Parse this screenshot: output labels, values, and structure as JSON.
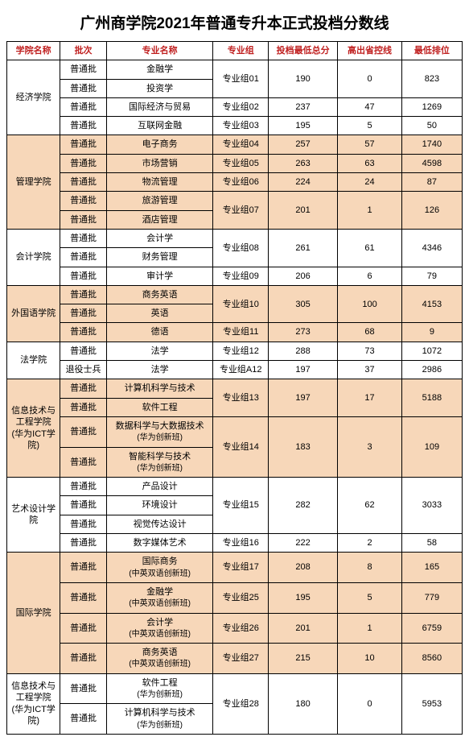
{
  "title": "广州商学院2021年普通专升本正式投档分数线",
  "headers": {
    "college": "学院名称",
    "batch": "批次",
    "major": "专业名称",
    "group": "专业组",
    "minTotal": "投档最低总分",
    "diff": "高出省控线",
    "minRank": "最低排位"
  },
  "colors": {
    "tint": "#f7d7b9",
    "plain": "#ffffff",
    "headerText": "#c02020"
  },
  "batchLabels": {
    "normal": "普通批",
    "retired": "退役士兵"
  },
  "colleges": [
    {
      "name": "经济学院",
      "tint": false,
      "groups": [
        {
          "group": "专业组01",
          "minTotal": "190",
          "diff": "0",
          "minRank": "823",
          "majors": [
            {
              "name": "金融学",
              "batch": "normal"
            },
            {
              "name": "投资学",
              "batch": "normal"
            }
          ]
        },
        {
          "group": "专业组02",
          "minTotal": "237",
          "diff": "47",
          "minRank": "1269",
          "majors": [
            {
              "name": "国际经济与贸易",
              "batch": "normal"
            }
          ]
        },
        {
          "group": "专业组03",
          "minTotal": "195",
          "diff": "5",
          "minRank": "50",
          "majors": [
            {
              "name": "互联网金融",
              "batch": "normal"
            }
          ]
        }
      ]
    },
    {
      "name": "管理学院",
      "tint": true,
      "groups": [
        {
          "group": "专业组04",
          "minTotal": "257",
          "diff": "57",
          "minRank": "1740",
          "majors": [
            {
              "name": "电子商务",
              "batch": "normal"
            }
          ]
        },
        {
          "group": "专业组05",
          "minTotal": "263",
          "diff": "63",
          "minRank": "4598",
          "majors": [
            {
              "name": "市场营销",
              "batch": "normal"
            }
          ]
        },
        {
          "group": "专业组06",
          "minTotal": "224",
          "diff": "24",
          "minRank": "87",
          "majors": [
            {
              "name": "物流管理",
              "batch": "normal"
            }
          ]
        },
        {
          "group": "专业组07",
          "minTotal": "201",
          "diff": "1",
          "minRank": "126",
          "majors": [
            {
              "name": "旅游管理",
              "batch": "normal"
            },
            {
              "name": "酒店管理",
              "batch": "normal"
            }
          ]
        }
      ]
    },
    {
      "name": "会计学院",
      "tint": false,
      "groups": [
        {
          "group": "专业组08",
          "minTotal": "261",
          "diff": "61",
          "minRank": "4346",
          "majors": [
            {
              "name": "会计学",
              "batch": "normal"
            },
            {
              "name": "财务管理",
              "batch": "normal"
            }
          ]
        },
        {
          "group": "专业组09",
          "minTotal": "206",
          "diff": "6",
          "minRank": "79",
          "majors": [
            {
              "name": "审计学",
              "batch": "normal"
            }
          ]
        }
      ]
    },
    {
      "name": "外国语学院",
      "tint": true,
      "groups": [
        {
          "group": "专业组10",
          "minTotal": "305",
          "diff": "100",
          "minRank": "4153",
          "majors": [
            {
              "name": "商务英语",
              "batch": "normal"
            },
            {
              "name": "英语",
              "batch": "normal"
            }
          ]
        },
        {
          "group": "专业组11",
          "minTotal": "273",
          "diff": "68",
          "minRank": "9",
          "majors": [
            {
              "name": "德语",
              "batch": "normal"
            }
          ]
        }
      ]
    },
    {
      "name": "法学院",
      "tint": false,
      "groups": [
        {
          "group": "专业组12",
          "minTotal": "288",
          "diff": "73",
          "minRank": "1072",
          "majors": [
            {
              "name": "法学",
              "batch": "normal"
            }
          ]
        },
        {
          "group": "专业组A12",
          "minTotal": "197",
          "diff": "37",
          "minRank": "2986",
          "majors": [
            {
              "name": "法学",
              "batch": "retired"
            }
          ]
        }
      ]
    },
    {
      "name": "信息技术与工程学院\n(华为ICT学院)",
      "tint": true,
      "groups": [
        {
          "group": "专业组13",
          "minTotal": "197",
          "diff": "17",
          "minRank": "5188",
          "majors": [
            {
              "name": "计算机科学与技术",
              "batch": "normal"
            },
            {
              "name": "软件工程",
              "batch": "normal"
            }
          ]
        },
        {
          "group": "专业组14",
          "minTotal": "183",
          "diff": "3",
          "minRank": "109",
          "majors": [
            {
              "name": "数据科学与大数据技术",
              "sub": "(华为创新班)",
              "batch": "normal"
            },
            {
              "name": "智能科学与技术",
              "sub": "(华为创新班)",
              "batch": "normal"
            }
          ]
        }
      ]
    },
    {
      "name": "艺术设计学院",
      "tint": false,
      "groups": [
        {
          "group": "专业组15",
          "minTotal": "282",
          "diff": "62",
          "minRank": "3033",
          "majors": [
            {
              "name": "产品设计",
              "batch": "normal"
            },
            {
              "name": "环境设计",
              "batch": "normal"
            },
            {
              "name": "视觉传达设计",
              "batch": "normal"
            }
          ]
        },
        {
          "group": "专业组16",
          "minTotal": "222",
          "diff": "2",
          "minRank": "58",
          "majors": [
            {
              "name": "数字媒体艺术",
              "batch": "normal"
            }
          ]
        }
      ]
    },
    {
      "name": "国际学院",
      "tint": true,
      "groups": [
        {
          "group": "专业组17",
          "minTotal": "208",
          "diff": "8",
          "minRank": "165",
          "majors": [
            {
              "name": "国际商务",
              "sub": "(中英双语创新班)",
              "batch": "normal"
            }
          ]
        },
        {
          "group": "专业组25",
          "minTotal": "195",
          "diff": "5",
          "minRank": "779",
          "majors": [
            {
              "name": "金融学",
              "sub": "(中英双语创新班)",
              "batch": "normal"
            }
          ]
        },
        {
          "group": "专业组26",
          "minTotal": "201",
          "diff": "1",
          "minRank": "6759",
          "majors": [
            {
              "name": "会计学",
              "sub": "(中英双语创新班)",
              "batch": "normal"
            }
          ]
        },
        {
          "group": "专业组27",
          "minTotal": "215",
          "diff": "10",
          "minRank": "8560",
          "majors": [
            {
              "name": "商务英语",
              "sub": "(中英双语创新班)",
              "batch": "normal"
            }
          ]
        }
      ]
    },
    {
      "name": "信息技术与工程学院\n(华为ICT学院)",
      "tint": false,
      "groups": [
        {
          "group": "专业组28",
          "minTotal": "180",
          "diff": "0",
          "minRank": "5953",
          "majors": [
            {
              "name": "软件工程",
              "sub": "(华为创新班)",
              "batch": "normal"
            },
            {
              "name": "计算机科学与技术",
              "sub": "(华为创新班)",
              "batch": "normal"
            }
          ]
        }
      ]
    }
  ]
}
